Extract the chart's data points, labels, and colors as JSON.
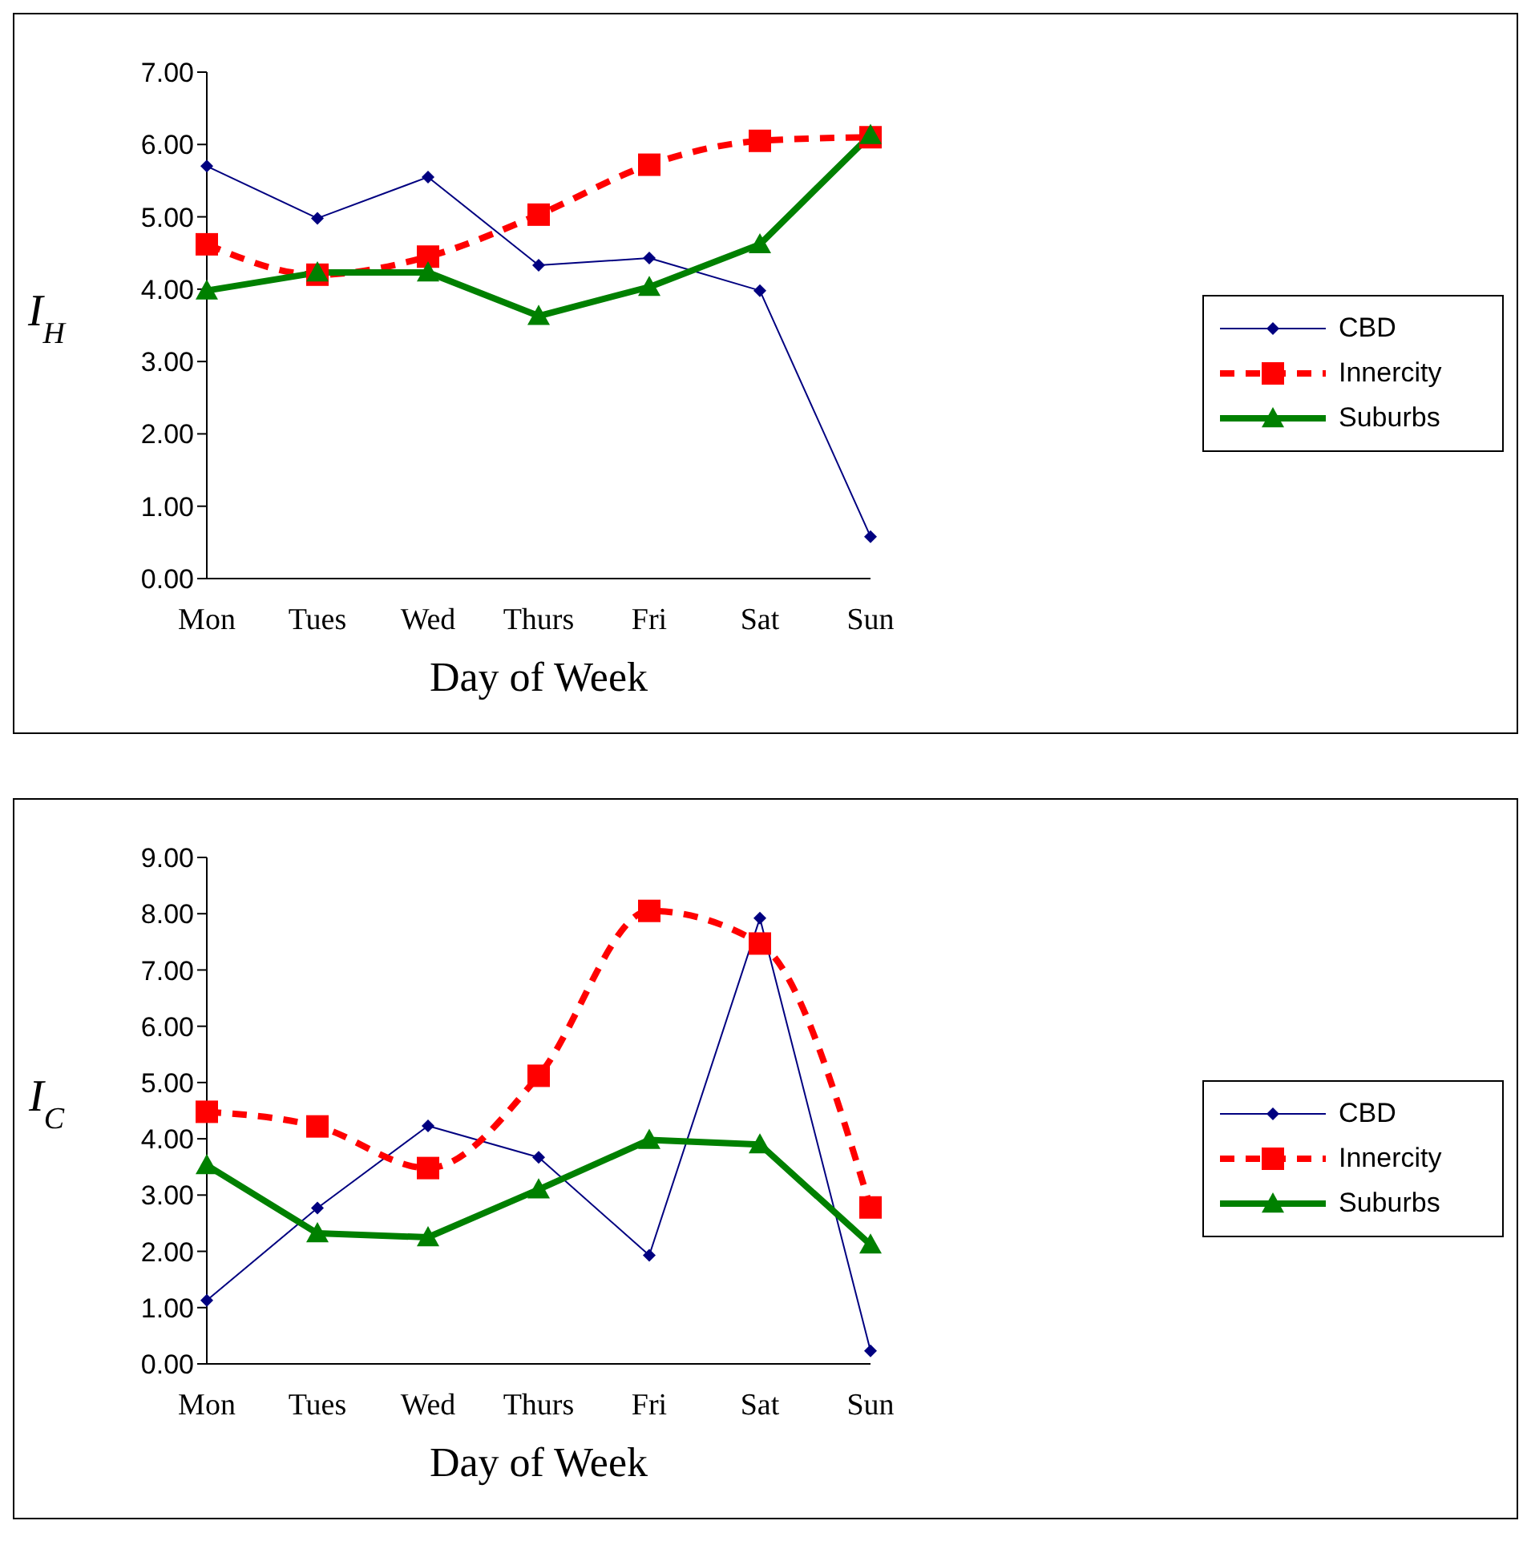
{
  "chart_data": [
    {
      "type": "line",
      "xlabel": "Day of Week",
      "ylabel": "I$_{H}$",
      "categories": [
        "Mon",
        "Tues",
        "Wed",
        "Thurs",
        "Fri",
        "Sat",
        "Sun"
      ],
      "ylim": [
        0,
        7
      ],
      "yticks": [
        {
          "value": 0,
          "label": "0.00"
        },
        {
          "value": 1,
          "label": "1.00"
        },
        {
          "value": 2,
          "label": "2.00"
        },
        {
          "value": 3,
          "label": "3.00"
        },
        {
          "value": 4,
          "label": "4.00"
        },
        {
          "value": 5,
          "label": "5.00"
        },
        {
          "value": 6,
          "label": "6.00"
        },
        {
          "value": 7,
          "label": "7.00"
        }
      ],
      "grid": false,
      "legend": "right",
      "series": [
        {
          "name": "CBD",
          "color": "#000080",
          "marker": "diamond",
          "line_style": "solid",
          "values": [
            5.7,
            4.98,
            5.55,
            4.33,
            4.43,
            3.98,
            0.58
          ]
        },
        {
          "name": "Innercity",
          "color": "#ff0000",
          "marker": "square",
          "line_style": "dashed",
          "values": [
            4.62,
            4.2,
            4.45,
            5.03,
            5.72,
            6.05,
            6.1
          ]
        },
        {
          "name": "Suburbs",
          "color": "#008000",
          "marker": "triangle",
          "line_style": "solid",
          "values": [
            3.98,
            4.23,
            4.23,
            3.63,
            4.03,
            4.62,
            6.13
          ]
        }
      ]
    },
    {
      "type": "line",
      "xlabel": "Day of Week",
      "ylabel": "I$_{C}$",
      "categories": [
        "Mon",
        "Tues",
        "Wed",
        "Thurs",
        "Fri",
        "Sat",
        "Sun"
      ],
      "ylim": [
        0,
        9
      ],
      "yticks": [
        {
          "value": 0,
          "label": "0.00"
        },
        {
          "value": 1,
          "label": "1.00"
        },
        {
          "value": 2,
          "label": "2.00"
        },
        {
          "value": 3,
          "label": "3.00"
        },
        {
          "value": 4,
          "label": "4.00"
        },
        {
          "value": 5,
          "label": "5.00"
        },
        {
          "value": 6,
          "label": "6.00"
        },
        {
          "value": 7,
          "label": "7.00"
        },
        {
          "value": 8,
          "label": "8.00"
        },
        {
          "value": 9,
          "label": "9.00"
        }
      ],
      "grid": false,
      "legend": "right",
      "series": [
        {
          "name": "CBD",
          "color": "#000080",
          "marker": "diamond",
          "line_style": "solid",
          "values": [
            1.13,
            2.77,
            4.23,
            3.67,
            1.93,
            7.92,
            0.23
          ]
        },
        {
          "name": "Innercity",
          "color": "#ff0000",
          "marker": "square",
          "line_style": "dashed",
          "values": [
            4.48,
            4.22,
            3.48,
            5.12,
            8.05,
            7.47,
            2.78
          ]
        },
        {
          "name": "Suburbs",
          "color": "#008000",
          "marker": "triangle",
          "line_style": "solid",
          "values": [
            3.53,
            2.32,
            2.25,
            3.1,
            3.98,
            3.9,
            2.12
          ]
        }
      ]
    }
  ]
}
